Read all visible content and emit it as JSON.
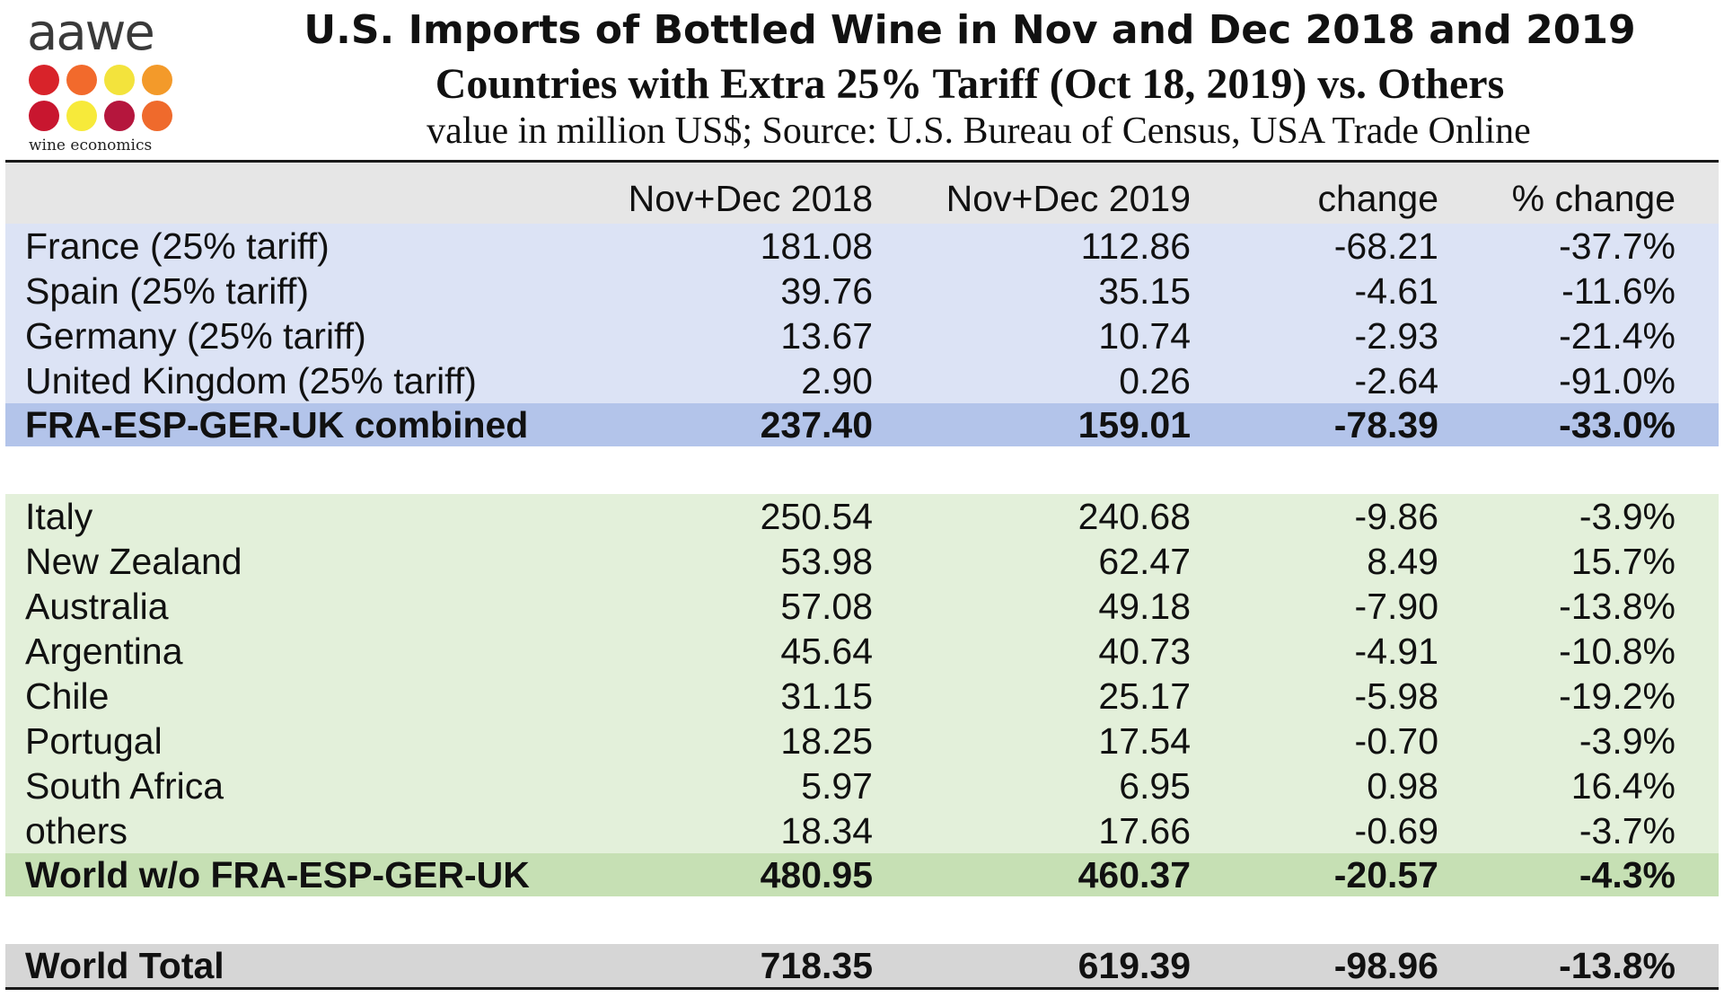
{
  "logo": {
    "word": "aawe",
    "subtitle": "wine economics",
    "dot_colors": [
      "#d8232a",
      "#f26a2c",
      "#f3e33c",
      "#f39a2a",
      "#c8162f",
      "#f7ea3a",
      "#b5163d",
      "#ef6a2c"
    ]
  },
  "header": {
    "title_line1": "U.S. Imports of Bottled Wine in Nov and Dec 2018 and 2019",
    "title_line2": "Countries with Extra 25% Tariff (Oct 18, 2019) vs. Others",
    "subtitle": "value in million US$; Source: U.S. Bureau of Census, USA Trade Online"
  },
  "colors": {
    "column_header_bg": "#e6e6e6",
    "tariff_rows_bg": "#dce3f5",
    "tariff_total_bg": "#b3c4ea",
    "others_rows_bg": "#e3f0da",
    "others_total_bg": "#c6e0b4",
    "world_total_bg": "#d6d6d6"
  },
  "chart_data": {
    "type": "table",
    "title": "U.S. Imports of Bottled Wine in Nov and Dec 2018 and 2019",
    "subtitle": "Countries with Extra 25% Tariff (Oct 18, 2019) vs. Others",
    "columns": [
      "",
      "Nov+Dec 2018",
      "Nov+Dec 2019",
      "change",
      "% change"
    ],
    "rows": [
      {
        "group": "tariff",
        "cells": [
          "France (25% tariff)",
          "181.08",
          "112.86",
          "-68.21",
          "-37.7%"
        ]
      },
      {
        "group": "tariff",
        "cells": [
          "Spain (25% tariff)",
          "39.76",
          "35.15",
          "-4.61",
          "-11.6%"
        ]
      },
      {
        "group": "tariff",
        "cells": [
          "Germany (25% tariff)",
          "13.67",
          "10.74",
          "-2.93",
          "-21.4%"
        ]
      },
      {
        "group": "tariff",
        "cells": [
          "United Kingdom (25% tariff)",
          "2.90",
          "0.26",
          "-2.64",
          "-91.0%"
        ]
      },
      {
        "group": "tariff_total",
        "cells": [
          "FRA-ESP-GER-UK combined",
          "237.40",
          "159.01",
          "-78.39",
          "-33.0%"
        ]
      },
      {
        "group": "others",
        "cells": [
          "Italy",
          "250.54",
          "240.68",
          "-9.86",
          "-3.9%"
        ]
      },
      {
        "group": "others",
        "cells": [
          "New Zealand",
          "53.98",
          "62.47",
          "8.49",
          "15.7%"
        ]
      },
      {
        "group": "others",
        "cells": [
          "Australia",
          "57.08",
          "49.18",
          "-7.90",
          "-13.8%"
        ]
      },
      {
        "group": "others",
        "cells": [
          "Argentina",
          "45.64",
          "40.73",
          "-4.91",
          "-10.8%"
        ]
      },
      {
        "group": "others",
        "cells": [
          "Chile",
          "31.15",
          "25.17",
          "-5.98",
          "-19.2%"
        ]
      },
      {
        "group": "others",
        "cells": [
          "Portugal",
          "18.25",
          "17.54",
          "-0.70",
          "-3.9%"
        ]
      },
      {
        "group": "others",
        "cells": [
          "South Africa",
          "5.97",
          "6.95",
          "0.98",
          "16.4%"
        ]
      },
      {
        "group": "others",
        "cells": [
          "others",
          "18.34",
          "17.66",
          "-0.69",
          "-3.7%"
        ]
      },
      {
        "group": "others_total",
        "cells": [
          "World w/o FRA-ESP-GER-UK",
          "480.95",
          "460.37",
          "-20.57",
          "-4.3%"
        ]
      },
      {
        "group": "world_total",
        "cells": [
          "World Total",
          "718.35",
          "619.39",
          "-98.96",
          "-13.8%"
        ]
      }
    ]
  }
}
